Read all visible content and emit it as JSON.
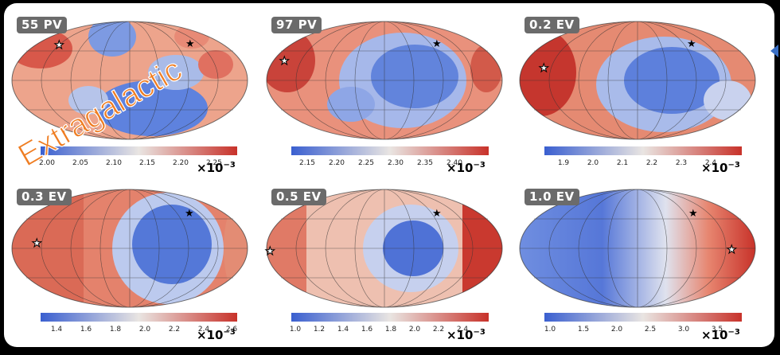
{
  "panels": [
    {
      "label": "55 PV",
      "ticks": [
        "2.00",
        "2.05",
        "2.10",
        "2.15",
        "2.20",
        "2.25"
      ],
      "multiplier_base": "×10",
      "multiplier_exp": "−3"
    },
    {
      "label": "97 PV",
      "ticks": [
        "2.15",
        "2.20",
        "2.25",
        "2.30",
        "2.35",
        "2.40"
      ],
      "multiplier_base": "×10",
      "multiplier_exp": "−3"
    },
    {
      "label": "0.2 EV",
      "ticks": [
        "1.9",
        "2.0",
        "2.1",
        "2.2",
        "2.3",
        "2.4"
      ],
      "multiplier_base": "×10",
      "multiplier_exp": "−3"
    },
    {
      "label": "0.3 EV",
      "ticks": [
        "1.4",
        "1.6",
        "1.8",
        "2.0",
        "2.2",
        "2.4",
        "2.6"
      ],
      "multiplier_base": "×10",
      "multiplier_exp": "−3"
    },
    {
      "label": "0.5 EV",
      "ticks": [
        "1.0",
        "1.2",
        "1.4",
        "1.6",
        "1.8",
        "2.0",
        "2.2",
        "2.4"
      ],
      "multiplier_base": "×10",
      "multiplier_exp": "−3"
    },
    {
      "label": "1.0 EV",
      "ticks": [
        "1.0",
        "1.5",
        "2.0",
        "2.5",
        "3.0",
        "3.5"
      ],
      "multiplier_base": "×10",
      "multiplier_exp": "−3"
    }
  ],
  "overlay_text": "Extragalactic",
  "colors": {
    "hot": "#c8322a",
    "cold": "#3a5fd0",
    "mid": "#e9e5e2",
    "tag_bg": "#6b6b6b",
    "overlay": "#ef7d22"
  }
}
